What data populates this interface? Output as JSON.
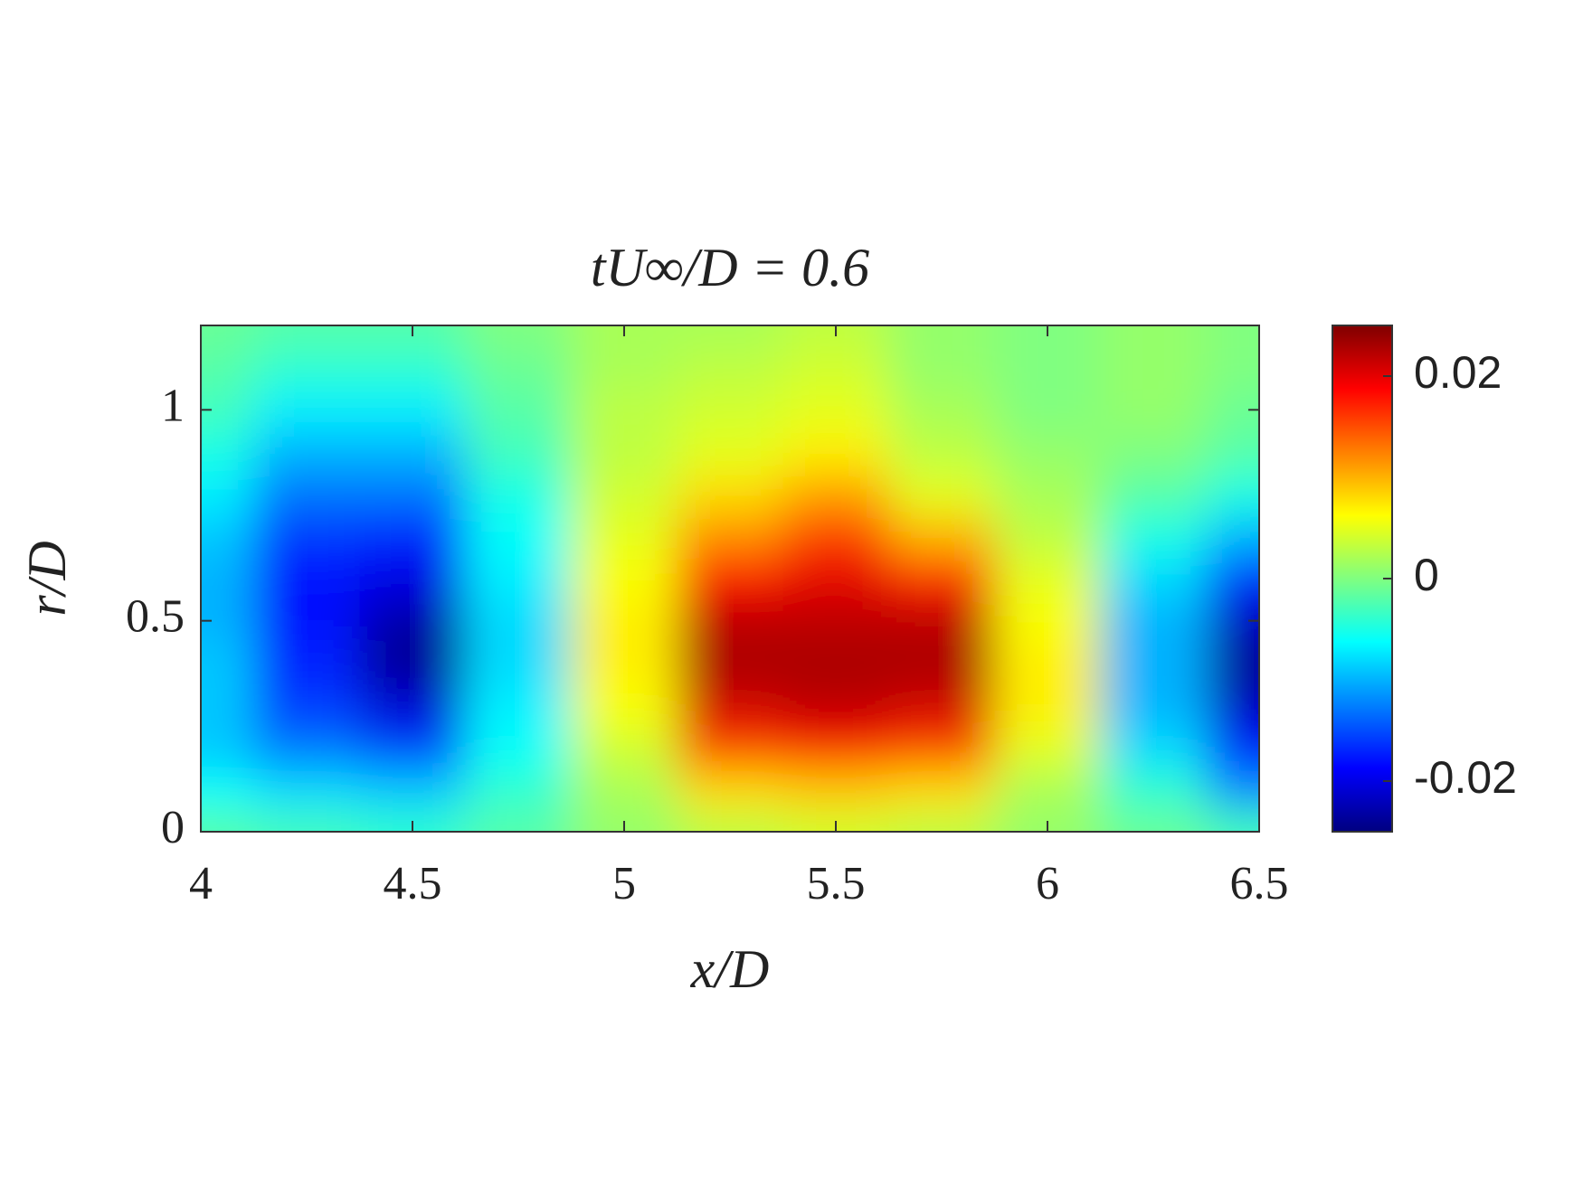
{
  "chart_data": {
    "type": "contour",
    "title": "tU∞/D = 0.6",
    "x_label": "x/D",
    "y_label": "r/D",
    "colormap": "jet",
    "x": [
      4,
      4.25,
      4.5,
      4.75,
      5,
      5.25,
      5.5,
      5.75,
      6,
      6.25,
      6.5
    ],
    "y": [
      0,
      0.1,
      0.2,
      0.3,
      0.4,
      0.5,
      0.6,
      0.7,
      0.8,
      0.9,
      1,
      1.1,
      1.2
    ],
    "values": [
      [
        -0.002,
        -0.003,
        -0.004,
        -0.002,
        0.001,
        0.003,
        0.004,
        0.003,
        0.001,
        -0.001,
        -0.003
      ],
      [
        -0.006,
        -0.008,
        -0.009,
        -0.004,
        0.002,
        0.008,
        0.009,
        0.008,
        0.002,
        -0.004,
        -0.012
      ],
      [
        -0.009,
        -0.013,
        -0.016,
        -0.006,
        0.004,
        0.016,
        0.018,
        0.016,
        0.005,
        -0.008,
        -0.018
      ],
      [
        -0.009,
        -0.016,
        -0.021,
        -0.007,
        0.006,
        0.021,
        0.022,
        0.021,
        0.007,
        -0.01,
        -0.022
      ],
      [
        -0.009,
        -0.017,
        -0.024,
        -0.008,
        0.007,
        0.023,
        0.023,
        0.023,
        0.007,
        -0.01,
        -0.024
      ],
      [
        -0.01,
        -0.018,
        -0.023,
        -0.008,
        0.007,
        0.022,
        0.022,
        0.022,
        0.006,
        -0.01,
        -0.022
      ],
      [
        -0.01,
        -0.018,
        -0.02,
        -0.007,
        0.006,
        0.018,
        0.02,
        0.017,
        0.005,
        -0.008,
        -0.017
      ],
      [
        -0.009,
        -0.016,
        -0.017,
        -0.006,
        0.005,
        0.012,
        0.016,
        0.01,
        0.003,
        -0.005,
        -0.01
      ],
      [
        -0.007,
        -0.013,
        -0.013,
        -0.005,
        0.004,
        0.008,
        0.011,
        0.005,
        0.002,
        -0.002,
        -0.005
      ],
      [
        -0.005,
        -0.01,
        -0.01,
        -0.003,
        0.003,
        0.005,
        0.007,
        0.003,
        0.001,
        0.0,
        -0.002
      ],
      [
        -0.003,
        -0.007,
        -0.007,
        -0.002,
        0.003,
        0.004,
        0.005,
        0.002,
        0.0,
        0.001,
        -0.001
      ],
      [
        -0.002,
        -0.004,
        -0.004,
        -0.001,
        0.002,
        0.003,
        0.004,
        0.001,
        0.0,
        0.001,
        0.0
      ],
      [
        -0.001,
        -0.002,
        -0.002,
        0.0,
        0.002,
        0.002,
        0.003,
        0.001,
        0.0,
        0.001,
        0.0
      ]
    ],
    "xlim": [
      4,
      6.5
    ],
    "xticks": [
      4,
      4.5,
      5,
      5.5,
      6,
      6.5
    ],
    "ylim": [
      0,
      1.2
    ],
    "yticks": [
      0,
      0.5,
      1
    ],
    "clim": [
      -0.025,
      0.025
    ],
    "cticks": [
      -0.02,
      0,
      0.02
    ]
  }
}
